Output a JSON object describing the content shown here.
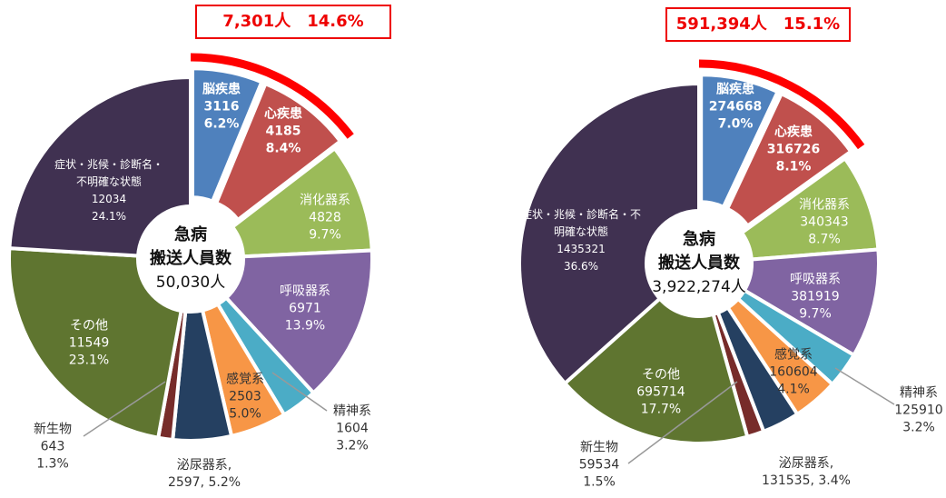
{
  "chart_data": [
    {
      "type": "pie",
      "donut": true,
      "highlight": "7,301人　14.6%",
      "center_label": "急病",
      "center_sublabel": "搬送人員数",
      "total_label": "50,030人",
      "categories": [
        "脳疾患",
        "心疾患",
        "消化器系",
        "呼吸器系",
        "精神系",
        "感覚系",
        "泌尿器系,",
        "新生物",
        "その他",
        "症状・兆候・診断名・不明確な状態"
      ],
      "values": [
        3116,
        4185,
        4828,
        6971,
        1604,
        2503,
        2597,
        643,
        11549,
        12034
      ],
      "value_labels": [
        "3116",
        "4185",
        "4828",
        "6971",
        "1604",
        "2503",
        "2597,",
        "643",
        "11549",
        "12034"
      ],
      "shares": [
        {
          "value": 6.2,
          "label": "6.2%"
        },
        {
          "value": 8.4,
          "label": "8.4%"
        },
        {
          "value": 9.7,
          "label": "9.7%"
        },
        {
          "value": 13.9,
          "label": "13.9%"
        },
        {
          "value": 3.2,
          "label": "3.2%"
        },
        {
          "value": 5.0,
          "label": "5.0%"
        },
        {
          "value": 5.2,
          "label": "5.2%"
        },
        {
          "value": 1.3,
          "label": "1.3%"
        },
        {
          "value": 23.1,
          "label": "23.1%"
        },
        {
          "value": 24.1,
          "label": "24.1%"
        }
      ],
      "colors": [
        "#4f81bd",
        "#c0504d",
        "#9bbb59",
        "#8064a2",
        "#4bacc6",
        "#f79646",
        "#254061",
        "#772c2a",
        "#5f7530",
        "#403151"
      ]
    },
    {
      "type": "pie",
      "donut": true,
      "highlight": "591,394人　15.1%",
      "center_label": "急病",
      "center_sublabel": "搬送人員数",
      "total_label": "3,922,274人",
      "categories": [
        "脳疾患",
        "心疾患",
        "消化器系",
        "呼吸器系",
        "精神系",
        "感覚系",
        "泌尿器系,",
        "新生物",
        "その他",
        "症状・兆候・診断名・不明確な状態"
      ],
      "values": [
        274668,
        316726,
        340343,
        381919,
        125910,
        160604,
        131535,
        59534,
        695714,
        1435321
      ],
      "value_labels": [
        "274668",
        "316726",
        "340343",
        "381919",
        "125910",
        "160604",
        "131535,",
        "59534",
        "695714",
        "1435321"
      ],
      "shares": [
        {
          "value": 7.0,
          "label": "7.0%"
        },
        {
          "value": 8.1,
          "label": "8.1%"
        },
        {
          "value": 8.7,
          "label": "8.7%"
        },
        {
          "value": 9.7,
          "label": "9.7%"
        },
        {
          "value": 3.2,
          "label": "3.2%"
        },
        {
          "value": 4.1,
          "label": "4.1%"
        },
        {
          "value": 3.4,
          "label": "3.4%"
        },
        {
          "value": 1.5,
          "label": "1.5%"
        },
        {
          "value": 17.7,
          "label": "17.7%"
        },
        {
          "value": 36.6,
          "label": "36.6%"
        }
      ],
      "colors": [
        "#4f81bd",
        "#c0504d",
        "#9bbb59",
        "#8064a2",
        "#4bacc6",
        "#f79646",
        "#254061",
        "#772c2a",
        "#5f7530",
        "#403151"
      ]
    }
  ]
}
